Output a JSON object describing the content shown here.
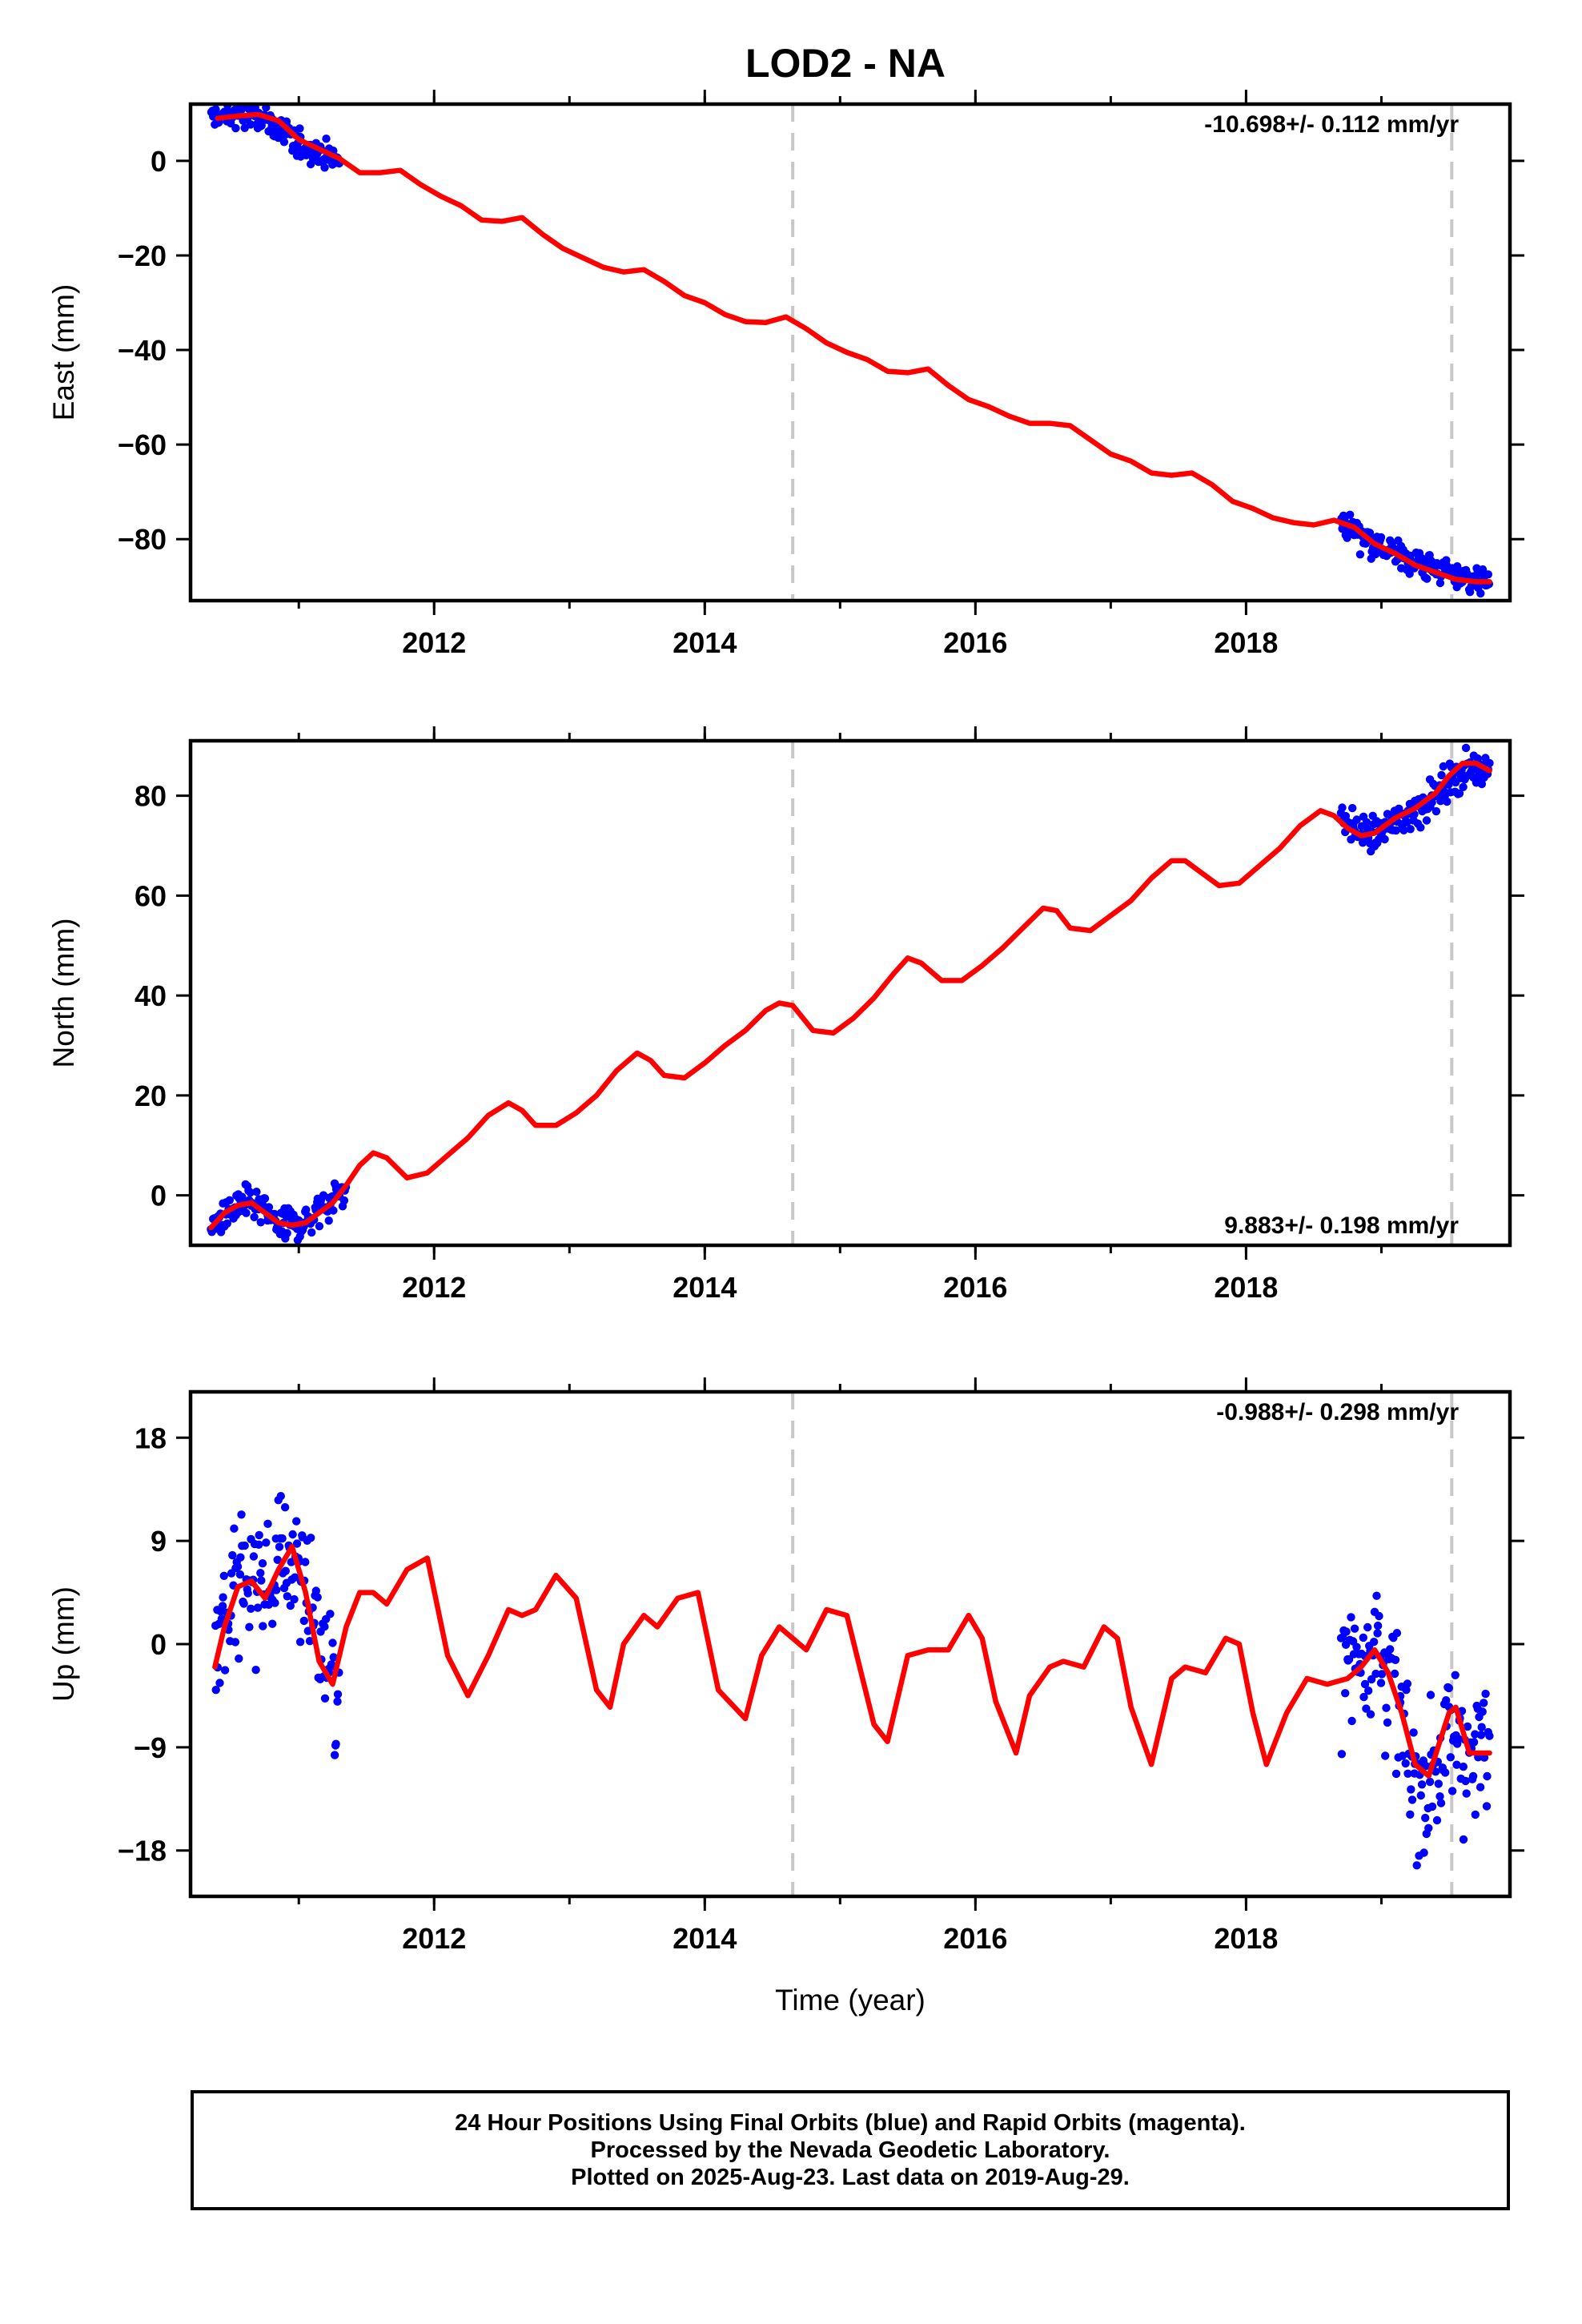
{
  "title": "LOD2 - NA",
  "colors": {
    "fit": "#ff0000",
    "points": "#0000ff",
    "break_line": "#c8c8c8",
    "axes": "#000000"
  },
  "chart_data": [
    {
      "type": "scatter",
      "ylabel": "East (mm)",
      "xlabel": "",
      "rate_label": "-10.698+/- 0.112 mm/yr",
      "rate_position": "top-right",
      "xlim": [
        2010.2,
        2019.95
      ],
      "ylim": [
        -93,
        12
      ],
      "xticks": [
        2012,
        2014,
        2016,
        2018
      ],
      "yticks": [
        0,
        -20,
        -40,
        -60,
        -80
      ],
      "break_lines": [
        2014.65,
        2019.52
      ],
      "series": [
        {
          "kind": "fit",
          "x": [
            2010.4,
            2010.55,
            2010.7,
            2010.85,
            2011.0,
            2011.15,
            2011.3,
            2011.45,
            2011.6,
            2011.75,
            2011.9,
            2012.05,
            2012.2,
            2012.35,
            2012.5,
            2012.65,
            2012.8,
            2012.95,
            2013.1,
            2013.25,
            2013.4,
            2013.55,
            2013.7,
            2013.85,
            2014.0,
            2014.15,
            2014.3,
            2014.45,
            2014.6,
            2014.75,
            2014.9,
            2015.05,
            2015.2,
            2015.35,
            2015.5,
            2015.65,
            2015.8,
            2015.95,
            2016.1,
            2016.25,
            2016.4,
            2016.55,
            2016.7,
            2016.85,
            2017.0,
            2017.15,
            2017.3,
            2017.45,
            2017.6,
            2017.75,
            2017.9,
            2018.05,
            2018.2,
            2018.35,
            2018.5,
            2018.65,
            2018.8,
            2018.95,
            2019.1,
            2019.25,
            2019.4,
            2019.55,
            2019.7,
            2019.8
          ],
          "y": [
            9,
            9.5,
            9.8,
            8.5,
            4.5,
            2.5,
            0.5,
            -2.5,
            -2.5,
            -2,
            -5,
            -7.5,
            -9.5,
            -12.5,
            -12.8,
            -12,
            -15.5,
            -18.5,
            -20.5,
            -22.5,
            -23.5,
            -23,
            -25.5,
            -28.5,
            -30,
            -32.5,
            -34,
            -34.2,
            -33,
            -35.5,
            -38.5,
            -40.5,
            -42,
            -44.5,
            -44.8,
            -44,
            -47.5,
            -50.5,
            -52,
            -54,
            -55.5,
            -55.5,
            -56,
            -59,
            -62,
            -63.5,
            -66,
            -66.5,
            -66,
            -68.5,
            -72,
            -73.5,
            -75.5,
            -76.5,
            -77,
            -76,
            -77.5,
            -81,
            -83,
            -85.5,
            -87,
            -88.5,
            -89,
            -89
          ]
        },
        {
          "kind": "points",
          "segments": [
            {
              "x": [
                2010.35,
                2010.75,
                2010.85,
                2011.3
              ],
              "y": [
                9.5,
                9.5,
                4,
                0
              ]
            },
            {
              "x": [
                2018.7,
                2018.85,
                2019.0,
                2019.8
              ],
              "y": [
                -76.5,
                -78.5,
                -82,
                -89
              ]
            }
          ],
          "spread": 2.2
        }
      ]
    },
    {
      "type": "scatter",
      "ylabel": "North (mm)",
      "xlabel": "",
      "rate_label": "9.883+/- 0.198 mm/yr",
      "rate_position": "bottom-right",
      "xlim": [
        2010.2,
        2019.95
      ],
      "ylim": [
        -10,
        91
      ],
      "xticks": [
        2012,
        2014,
        2016,
        2018
      ],
      "yticks": [
        80,
        60,
        40,
        20,
        0
      ],
      "break_lines": [
        2014.65,
        2019.52
      ],
      "series": [
        {
          "kind": "fit",
          "x": [
            2010.35,
            2010.45,
            2010.55,
            2010.65,
            2010.75,
            2010.85,
            2010.95,
            2011.05,
            2011.15,
            2011.25,
            2011.35,
            2011.45,
            2011.55,
            2011.65,
            2011.8,
            2011.95,
            2012.1,
            2012.25,
            2012.4,
            2012.55,
            2012.65,
            2012.75,
            2012.9,
            2013.05,
            2013.2,
            2013.35,
            2013.5,
            2013.6,
            2013.7,
            2013.85,
            2014.0,
            2014.15,
            2014.3,
            2014.45,
            2014.55,
            2014.65,
            2014.8,
            2014.95,
            2015.1,
            2015.25,
            2015.4,
            2015.5,
            2015.6,
            2015.75,
            2015.9,
            2016.05,
            2016.2,
            2016.35,
            2016.5,
            2016.6,
            2016.7,
            2016.85,
            2017.0,
            2017.15,
            2017.3,
            2017.45,
            2017.55,
            2017.65,
            2017.8,
            2017.95,
            2018.1,
            2018.25,
            2018.4,
            2018.55,
            2018.65,
            2018.75,
            2018.85,
            2018.95,
            2019.1,
            2019.25,
            2019.4,
            2019.5,
            2019.6,
            2019.7,
            2019.8
          ],
          "y": [
            -6.5,
            -3.5,
            -2,
            -1.5,
            -3.5,
            -5.5,
            -6,
            -5.5,
            -3.5,
            -1.5,
            2,
            6,
            8.5,
            7.5,
            3.5,
            4.5,
            8,
            11.5,
            16,
            18.5,
            17,
            14,
            14,
            16.5,
            20,
            25,
            28.5,
            27,
            24,
            23.5,
            26.5,
            30,
            33,
            37,
            38.5,
            38,
            33,
            32.5,
            35.5,
            39.5,
            44.5,
            47.5,
            46.5,
            43,
            43,
            46,
            49.5,
            53.5,
            57.5,
            57,
            53.5,
            53,
            56,
            59,
            63.5,
            67,
            67,
            65,
            62,
            62.5,
            66,
            69.5,
            74,
            77,
            76,
            73.5,
            72,
            72.5,
            75.5,
            77.5,
            80.5,
            84,
            86.5,
            86.5,
            85
          ]
        },
        {
          "kind": "points",
          "segments": [
            {
              "x": [
                2010.35,
                2010.65,
                2010.85,
                2011.05,
                2011.35
              ],
              "y": [
                -6.5,
                -1,
                -6,
                -5,
                2.5
              ]
            },
            {
              "x": [
                2018.7,
                2018.95,
                2019.2,
                2019.5,
                2019.8
              ],
              "y": [
                76,
                71.5,
                76,
                82,
                86.5
              ]
            }
          ],
          "spread": 2.4
        }
      ]
    },
    {
      "type": "scatter",
      "ylabel": "Up (mm)",
      "xlabel": "Time (year)",
      "rate_label": "-0.988+/- 0.298 mm/yr",
      "rate_position": "top-right",
      "xlim": [
        2010.2,
        2019.95
      ],
      "ylim": [
        -22,
        22
      ],
      "xticks": [
        2012,
        2014,
        2016,
        2018
      ],
      "yticks": [
        18,
        9,
        0,
        -9,
        -18
      ],
      "break_lines": [
        2014.65,
        2019.52
      ],
      "series": [
        {
          "kind": "fit",
          "x": [
            2010.38,
            2010.45,
            2010.55,
            2010.65,
            2010.75,
            2010.85,
            2010.95,
            2011.05,
            2011.15,
            2011.25,
            2011.35,
            2011.45,
            2011.55,
            2011.65,
            2011.8,
            2011.95,
            2012.1,
            2012.25,
            2012.4,
            2012.55,
            2012.65,
            2012.75,
            2012.9,
            2013.05,
            2013.2,
            2013.3,
            2013.4,
            2013.55,
            2013.65,
            2013.8,
            2013.95,
            2014.1,
            2014.3,
            2014.42,
            2014.55,
            2014.65,
            2014.75,
            2014.9,
            2015.05,
            2015.25,
            2015.35,
            2015.5,
            2015.65,
            2015.8,
            2015.95,
            2016.05,
            2016.15,
            2016.3,
            2016.4,
            2016.55,
            2016.65,
            2016.8,
            2016.95,
            2017.05,
            2017.15,
            2017.3,
            2017.45,
            2017.55,
            2017.7,
            2017.85,
            2017.95,
            2018.05,
            2018.15,
            2018.3,
            2018.45,
            2018.6,
            2018.75,
            2018.85,
            2018.95,
            2019.05,
            2019.15,
            2019.25,
            2019.35,
            2019.5,
            2019.55,
            2019.65,
            2019.8
          ],
          "y": [
            -2,
            1.5,
            5,
            5.5,
            4,
            6.5,
            8.5,
            4.5,
            -1.5,
            -3.5,
            1.5,
            4.5,
            4.5,
            3.5,
            6.5,
            7.5,
            -1,
            -4.5,
            -1,
            3,
            2.5,
            3,
            6,
            4,
            -4,
            -5.5,
            0,
            2.5,
            1.5,
            4,
            4.5,
            -4,
            -6.5,
            -1,
            1.5,
            0.5,
            -0.5,
            3,
            2.5,
            -7,
            -8.5,
            -1,
            -0.5,
            -0.5,
            2.5,
            0.5,
            -5,
            -9.5,
            -4.5,
            -2,
            -1.5,
            -2,
            1.5,
            0.5,
            -5.5,
            -10.5,
            -3,
            -2,
            -2.5,
            0.5,
            0,
            -6,
            -10.5,
            -6,
            -3,
            -3.5,
            -3,
            -2,
            -0.5,
            -2.5,
            -6,
            -10.5,
            -11.5,
            -6,
            -5.5,
            -9.5,
            -9.5
          ]
        },
        {
          "kind": "points",
          "segments": [
            {
              "x": [
                2010.38,
                2010.75,
                2011.0,
                2011.1,
                2011.3
              ],
              "y": [
                3,
                6,
                8,
                4,
                -6
              ]
            },
            {
              "x": [
                2018.7,
                2018.95,
                2019.1,
                2019.25,
                2019.5,
                2019.8
              ],
              "y": [
                -2,
                2,
                -4,
                -14,
                -10,
                -9
              ]
            }
          ],
          "spread": 4.5
        }
      ]
    }
  ],
  "caption": {
    "line1": "24 Hour Positions Using Final Orbits (blue) and Rapid Orbits (magenta).",
    "line2": "Processed by the Nevada Geodetic Laboratory.",
    "line3": "Plotted on 2025-Aug-23. Last data on 2019-Aug-29."
  }
}
